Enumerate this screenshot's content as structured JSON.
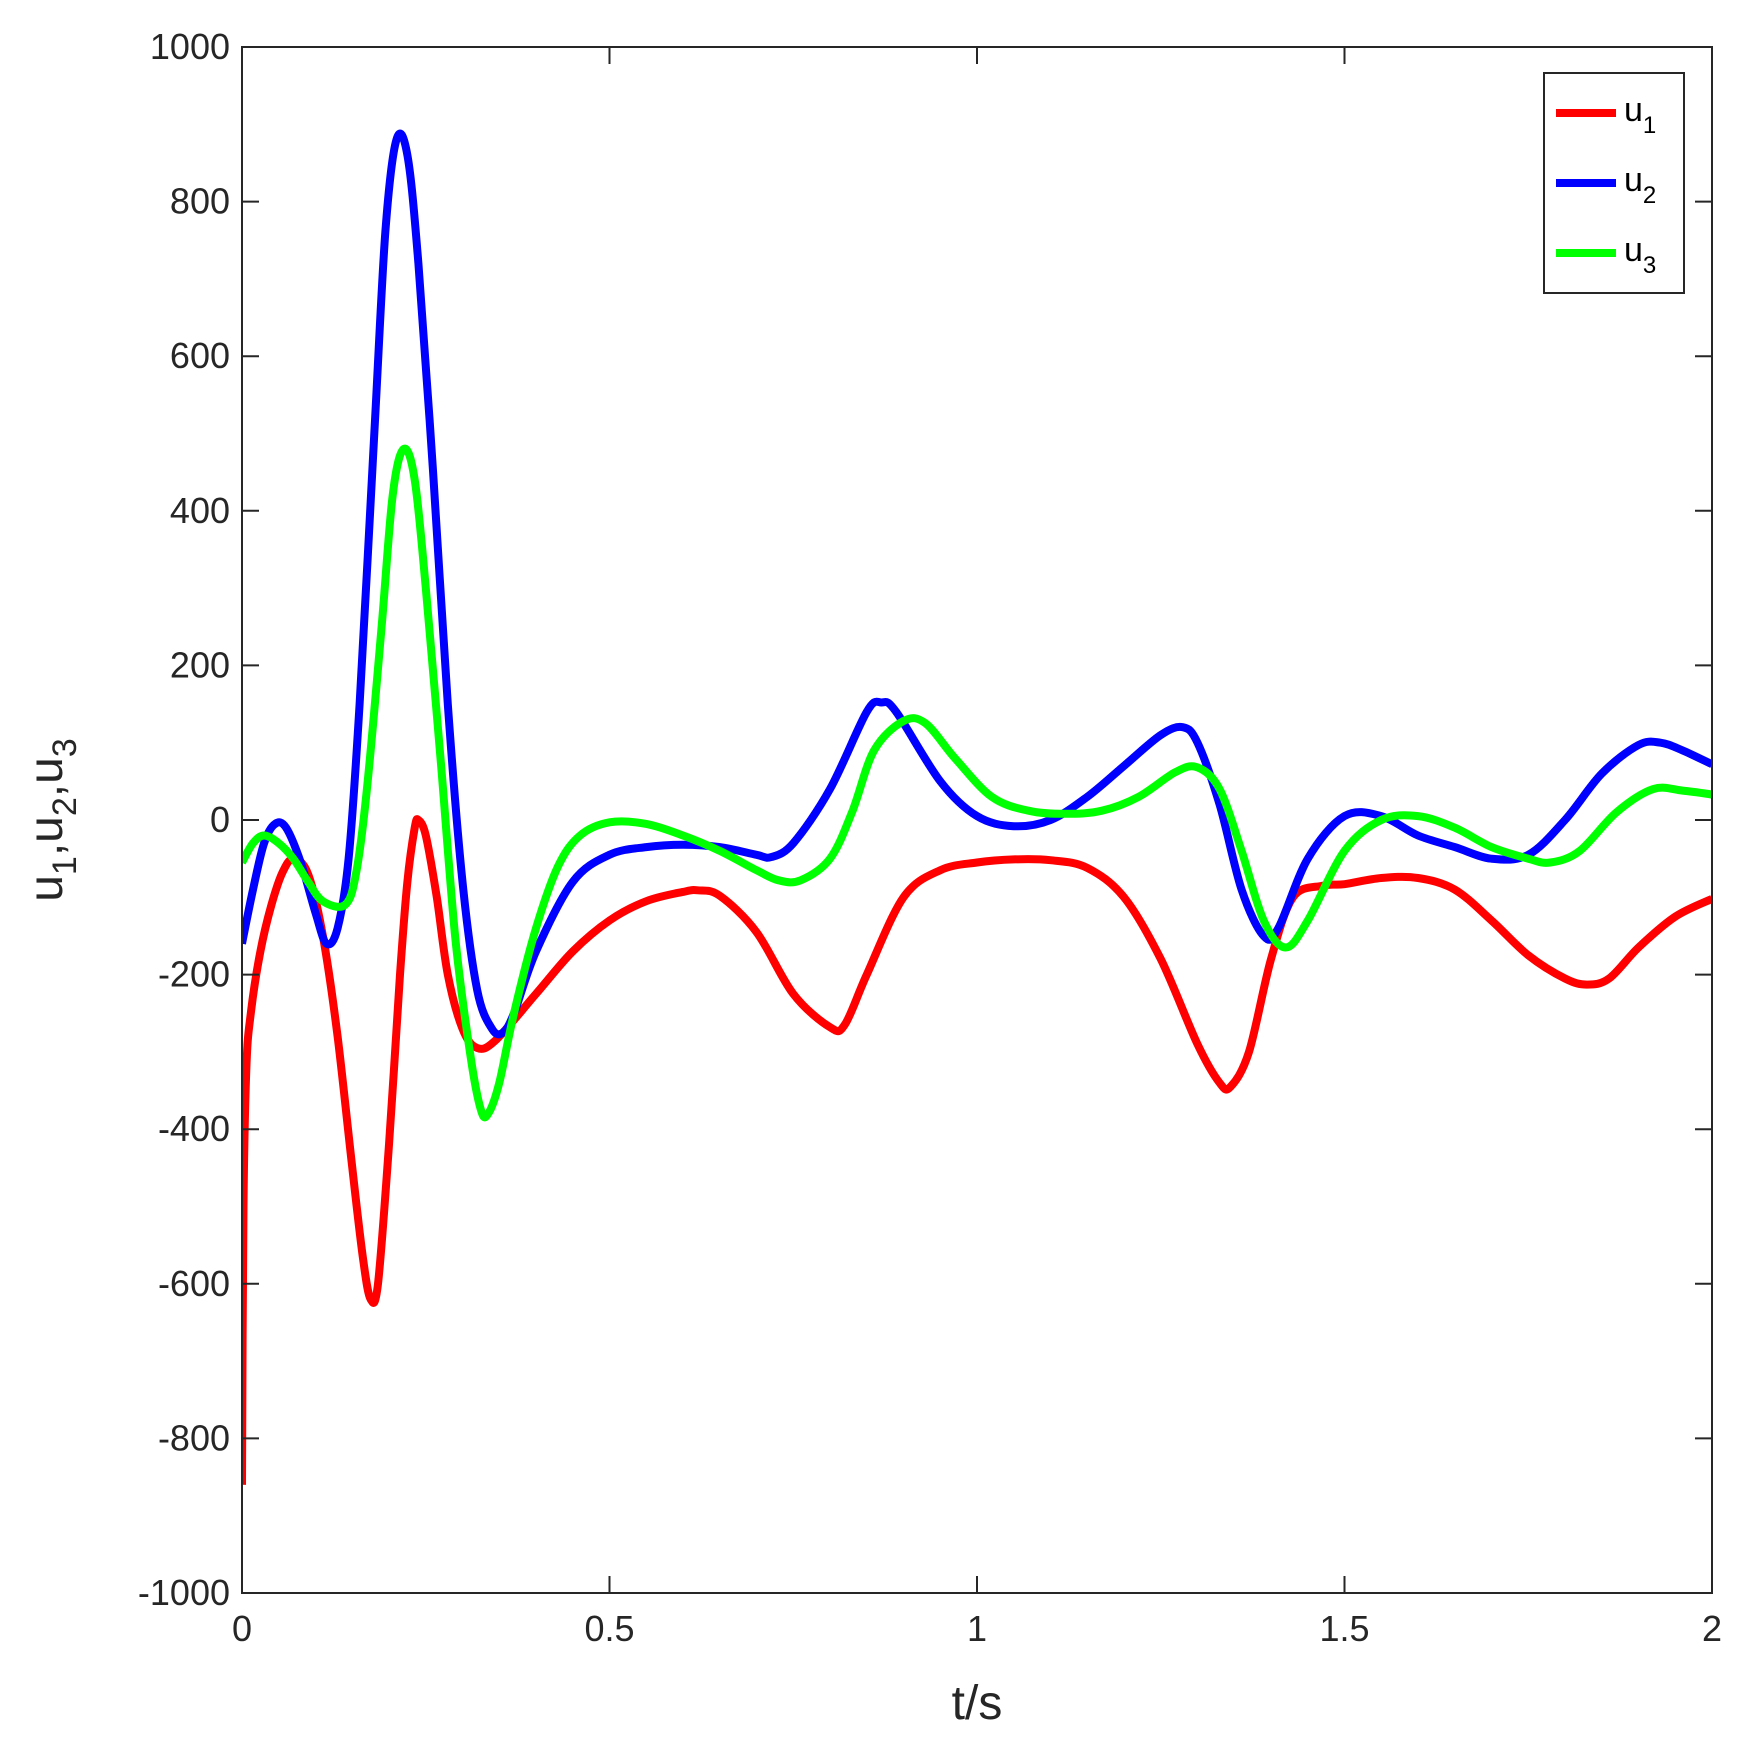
{
  "chart_data": {
    "type": "line",
    "title": "",
    "xlabel": "t/s",
    "ylabel": "u₁,u₂,u₃",
    "ylabel_parts": [
      {
        "base": "u",
        "sub": "1",
        "sep": ","
      },
      {
        "base": "u",
        "sub": "2",
        "sep": ","
      },
      {
        "base": "u",
        "sub": "3",
        "sep": ""
      }
    ],
    "xlim": [
      0,
      2
    ],
    "ylim": [
      -1000,
      1000
    ],
    "xticks": [
      0,
      0.5,
      1,
      1.5,
      2
    ],
    "xtick_labels": [
      "0",
      "0.5",
      "1",
      "1.5",
      "2"
    ],
    "yticks": [
      -1000,
      -800,
      -600,
      -400,
      -200,
      0,
      200,
      400,
      600,
      800,
      1000
    ],
    "ytick_labels": [
      "-1000",
      "-800",
      "-600",
      "-400",
      "-200",
      "0",
      "200",
      "400",
      "600",
      "800",
      "1000"
    ],
    "grid": false,
    "legend_position": "top-right",
    "series": [
      {
        "name": "u1",
        "legend": {
          "base": "u",
          "sub": "1"
        },
        "color": "#ff0000",
        "points": [
          [
            0,
            -860
          ],
          [
            0.002,
            -500
          ],
          [
            0.006,
            -320
          ],
          [
            0.012,
            -250
          ],
          [
            0.025,
            -170
          ],
          [
            0.04,
            -110
          ],
          [
            0.055,
            -68
          ],
          [
            0.07,
            -50
          ],
          [
            0.09,
            -70
          ],
          [
            0.11,
            -150
          ],
          [
            0.13,
            -280
          ],
          [
            0.15,
            -450
          ],
          [
            0.165,
            -570
          ],
          [
            0.175,
            -620
          ],
          [
            0.185,
            -600
          ],
          [
            0.2,
            -420
          ],
          [
            0.215,
            -200
          ],
          [
            0.225,
            -80
          ],
          [
            0.235,
            -10
          ],
          [
            0.24,
            0
          ],
          [
            0.25,
            -20
          ],
          [
            0.265,
            -100
          ],
          [
            0.28,
            -200
          ],
          [
            0.3,
            -270
          ],
          [
            0.32,
            -295
          ],
          [
            0.345,
            -285
          ],
          [
            0.4,
            -225
          ],
          [
            0.45,
            -170
          ],
          [
            0.5,
            -130
          ],
          [
            0.55,
            -105
          ],
          [
            0.6,
            -93
          ],
          [
            0.62,
            -91
          ],
          [
            0.65,
            -98
          ],
          [
            0.7,
            -145
          ],
          [
            0.75,
            -225
          ],
          [
            0.8,
            -268
          ],
          [
            0.82,
            -265
          ],
          [
            0.85,
            -200
          ],
          [
            0.9,
            -100
          ],
          [
            0.95,
            -65
          ],
          [
            1,
            -55
          ],
          [
            1.05,
            -51
          ],
          [
            1.1,
            -52
          ],
          [
            1.15,
            -62
          ],
          [
            1.2,
            -100
          ],
          [
            1.25,
            -180
          ],
          [
            1.3,
            -290
          ],
          [
            1.33,
            -340
          ],
          [
            1.345,
            -345
          ],
          [
            1.37,
            -300
          ],
          [
            1.4,
            -180
          ],
          [
            1.43,
            -100
          ],
          [
            1.47,
            -85
          ],
          [
            1.5,
            -83
          ],
          [
            1.55,
            -75
          ],
          [
            1.6,
            -75
          ],
          [
            1.65,
            -90
          ],
          [
            1.7,
            -130
          ],
          [
            1.75,
            -175
          ],
          [
            1.8,
            -205
          ],
          [
            1.83,
            -213
          ],
          [
            1.86,
            -205
          ],
          [
            1.9,
            -165
          ],
          [
            1.95,
            -125
          ],
          [
            2,
            -102
          ]
        ]
      },
      {
        "name": "u2",
        "legend": {
          "base": "u",
          "sub": "2"
        },
        "color": "#0000ff",
        "points": [
          [
            0,
            -160
          ],
          [
            0.015,
            -90
          ],
          [
            0.03,
            -30
          ],
          [
            0.045,
            -5
          ],
          [
            0.06,
            -10
          ],
          [
            0.08,
            -55
          ],
          [
            0.1,
            -120
          ],
          [
            0.115,
            -160
          ],
          [
            0.13,
            -140
          ],
          [
            0.145,
            -50
          ],
          [
            0.16,
            150
          ],
          [
            0.18,
            500
          ],
          [
            0.195,
            760
          ],
          [
            0.21,
            880
          ],
          [
            0.225,
            860
          ],
          [
            0.24,
            720
          ],
          [
            0.26,
            450
          ],
          [
            0.28,
            150
          ],
          [
            0.3,
            -80
          ],
          [
            0.32,
            -220
          ],
          [
            0.34,
            -270
          ],
          [
            0.355,
            -275
          ],
          [
            0.37,
            -250
          ],
          [
            0.4,
            -170
          ],
          [
            0.45,
            -80
          ],
          [
            0.5,
            -45
          ],
          [
            0.55,
            -35
          ],
          [
            0.6,
            -32
          ],
          [
            0.65,
            -35
          ],
          [
            0.7,
            -45
          ],
          [
            0.72,
            -48
          ],
          [
            0.75,
            -30
          ],
          [
            0.8,
            40
          ],
          [
            0.85,
            140
          ],
          [
            0.87,
            152
          ],
          [
            0.89,
            140
          ],
          [
            0.95,
            50
          ],
          [
            1,
            5
          ],
          [
            1.05,
            -8
          ],
          [
            1.1,
            0
          ],
          [
            1.15,
            30
          ],
          [
            1.2,
            70
          ],
          [
            1.25,
            110
          ],
          [
            1.28,
            120
          ],
          [
            1.3,
            100
          ],
          [
            1.33,
            20
          ],
          [
            1.36,
            -90
          ],
          [
            1.39,
            -150
          ],
          [
            1.41,
            -140
          ],
          [
            1.45,
            -50
          ],
          [
            1.5,
            5
          ],
          [
            1.55,
            5
          ],
          [
            1.6,
            -20
          ],
          [
            1.65,
            -35
          ],
          [
            1.7,
            -50
          ],
          [
            1.75,
            -45
          ],
          [
            1.8,
            0
          ],
          [
            1.85,
            60
          ],
          [
            1.9,
            97
          ],
          [
            1.93,
            100
          ],
          [
            1.96,
            90
          ],
          [
            2,
            72
          ]
        ]
      },
      {
        "name": "u3",
        "legend": {
          "base": "u",
          "sub": "3"
        },
        "color": "#00ff00",
        "points": [
          [
            0,
            -55
          ],
          [
            0.015,
            -30
          ],
          [
            0.03,
            -20
          ],
          [
            0.05,
            -30
          ],
          [
            0.07,
            -50
          ],
          [
            0.09,
            -80
          ],
          [
            0.11,
            -105
          ],
          [
            0.14,
            -110
          ],
          [
            0.155,
            -70
          ],
          [
            0.17,
            40
          ],
          [
            0.19,
            250
          ],
          [
            0.205,
            420
          ],
          [
            0.22,
            480
          ],
          [
            0.235,
            440
          ],
          [
            0.25,
            300
          ],
          [
            0.27,
            80
          ],
          [
            0.29,
            -150
          ],
          [
            0.31,
            -300
          ],
          [
            0.325,
            -375
          ],
          [
            0.335,
            -380
          ],
          [
            0.35,
            -340
          ],
          [
            0.37,
            -250
          ],
          [
            0.4,
            -140
          ],
          [
            0.43,
            -60
          ],
          [
            0.46,
            -20
          ],
          [
            0.5,
            -3
          ],
          [
            0.55,
            -5
          ],
          [
            0.6,
            -20
          ],
          [
            0.65,
            -40
          ],
          [
            0.7,
            -65
          ],
          [
            0.73,
            -78
          ],
          [
            0.76,
            -78
          ],
          [
            0.8,
            -50
          ],
          [
            0.83,
            10
          ],
          [
            0.86,
            90
          ],
          [
            0.9,
            128
          ],
          [
            0.93,
            125
          ],
          [
            0.97,
            80
          ],
          [
            1.02,
            30
          ],
          [
            1.07,
            12
          ],
          [
            1.12,
            8
          ],
          [
            1.17,
            12
          ],
          [
            1.22,
            30
          ],
          [
            1.27,
            62
          ],
          [
            1.3,
            68
          ],
          [
            1.33,
            40
          ],
          [
            1.36,
            -40
          ],
          [
            1.39,
            -130
          ],
          [
            1.42,
            -165
          ],
          [
            1.45,
            -130
          ],
          [
            1.5,
            -40
          ],
          [
            1.55,
            0
          ],
          [
            1.6,
            5
          ],
          [
            1.65,
            -10
          ],
          [
            1.7,
            -35
          ],
          [
            1.75,
            -50
          ],
          [
            1.78,
            -55
          ],
          [
            1.82,
            -40
          ],
          [
            1.87,
            10
          ],
          [
            1.92,
            40
          ],
          [
            1.96,
            38
          ],
          [
            2,
            33
          ]
        ]
      }
    ]
  }
}
